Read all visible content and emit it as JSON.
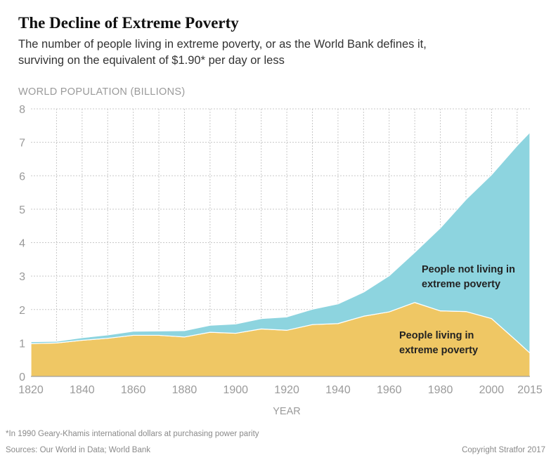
{
  "header": {
    "title": "The Decline of Extreme Poverty",
    "subtitle_line1": "The number of people living in extreme poverty, or as the World Bank defines it,",
    "subtitle_line2": "surviving on the equivalent of $1.90* per day or less"
  },
  "chart_data": {
    "type": "area",
    "stacked": true,
    "ylabel": "WORLD POPULATION (BILLIONS)",
    "xlabel": "YEAR",
    "ylim": [
      0,
      8
    ],
    "yticks": [
      0,
      1,
      2,
      3,
      4,
      5,
      6,
      7,
      8
    ],
    "xticks": [
      1820,
      1840,
      1860,
      1880,
      1900,
      1920,
      1940,
      1960,
      1980,
      2000,
      2015
    ],
    "grid": true,
    "x": [
      1820,
      1830,
      1840,
      1850,
      1860,
      1870,
      1880,
      1890,
      1900,
      1910,
      1920,
      1930,
      1940,
      1950,
      1960,
      1970,
      1980,
      1990,
      2000,
      2010,
      2015
    ],
    "series": [
      {
        "name": "People living in extreme poverty",
        "color": "#efc764",
        "values": [
          0.98,
          1.0,
          1.08,
          1.14,
          1.23,
          1.23,
          1.18,
          1.32,
          1.29,
          1.42,
          1.38,
          1.55,
          1.58,
          1.8,
          1.93,
          2.21,
          1.96,
          1.94,
          1.73,
          1.05,
          0.7
        ]
      },
      {
        "name": "People not living in extreme poverty",
        "color": "#8dd4df",
        "values": [
          0.06,
          0.05,
          0.08,
          0.1,
          0.12,
          0.13,
          0.19,
          0.21,
          0.28,
          0.31,
          0.4,
          0.46,
          0.59,
          0.72,
          1.08,
          1.5,
          2.48,
          3.35,
          4.3,
          5.85,
          6.6
        ]
      }
    ]
  },
  "footer": {
    "footnote": "*In 1990 Geary-Khamis international dollars at purchasing power parity",
    "sources": "Sources: Our World in Data; World Bank",
    "copyright": "Copyright Stratfor 2017"
  }
}
